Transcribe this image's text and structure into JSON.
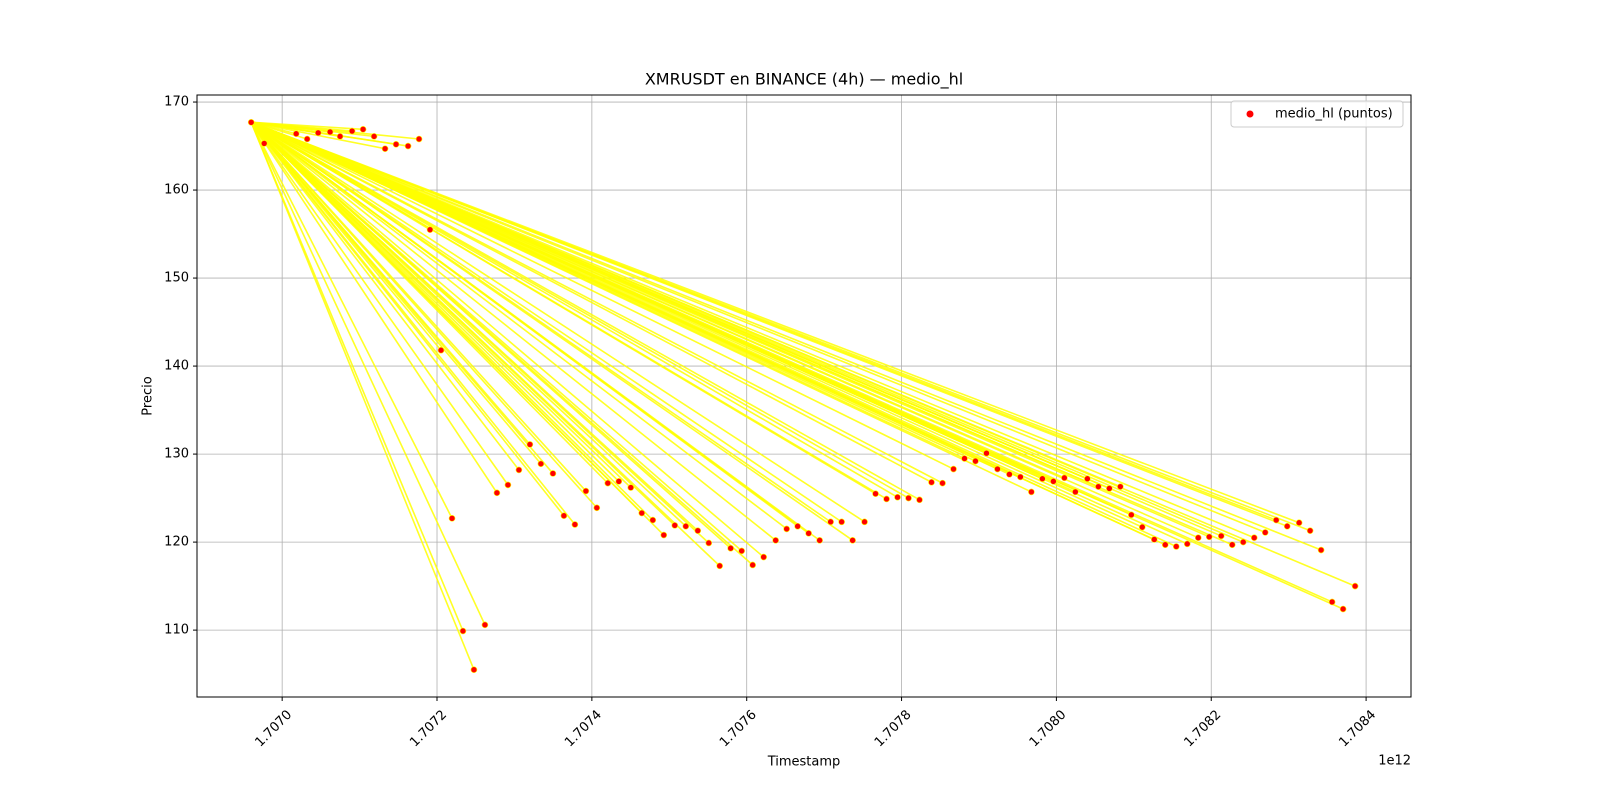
{
  "chart_data": {
    "type": "scatter",
    "title": "XMRUSDT en BINANCE (4h) — medio_hl",
    "x_label": "Timestamp",
    "y_label": "Precio",
    "x_offset_label": "1e12",
    "grid": true,
    "legend": "upper right",
    "line_color": "#ffff00",
    "xlim": [
      1706890000000,
      1708458000000
    ],
    "ylim": [
      102.4,
      170.8
    ],
    "xticks": [
      {
        "value": 1707000000000,
        "label": "1.7070"
      },
      {
        "value": 1707200000000,
        "label": "1.7072"
      },
      {
        "value": 1707400000000,
        "label": "1.7074"
      },
      {
        "value": 1707600000000,
        "label": "1.7076"
      },
      {
        "value": 1707800000000,
        "label": "1.7078"
      },
      {
        "value": 1708000000000,
        "label": "1.7080"
      },
      {
        "value": 1708200000000,
        "label": "1.7082"
      },
      {
        "value": 1708400000000,
        "label": "1.7084"
      }
    ],
    "yticks": [
      110,
      120,
      130,
      140,
      150,
      160,
      170
    ],
    "series": [
      {
        "name": "medio_hl (puntos)",
        "color": "#ff0000",
        "x": [
          1706960000000,
          1706976800000,
          1707018100000,
          1707032300000,
          1707046500000,
          1707061900000,
          1707074800000,
          1707090300000,
          1707104500000,
          1707118700000,
          1707132900000,
          1707147100000,
          1707162600000,
          1707176800000,
          1707191000000,
          1707205200000,
          1707219400000,
          1707233500000,
          1707247700000,
          1707261900000,
          1707277400000,
          1707291600000,
          1707305800000,
          1707320000000,
          1707334200000,
          1707349700000,
          1707363900000,
          1707378100000,
          1707392300000,
          1707406400000,
          1707420600000,
          1707434800000,
          1707450300000,
          1707464500000,
          1707478700000,
          1707492900000,
          1707507100000,
          1707521300000,
          1707536800000,
          1707551000000,
          1707565100000,
          1707579300000,
          1707593500000,
          1707607700000,
          1707621900000,
          1707637400000,
          1707651600000,
          1707665800000,
          1707680000000,
          1707694200000,
          1707708400000,
          1707722600000,
          1707736800000,
          1707752200000,
          1707766400000,
          1707780600000,
          1707794800000,
          1707809000000,
          1707823200000,
          1707838700000,
          1707852900000,
          1707867100000,
          1707881300000,
          1707895500000,
          1707909700000,
          1707923900000,
          1707939300000,
          1707953500000,
          1707967700000,
          1707981900000,
          1707996100000,
          1708010300000,
          1708024500000,
          1708040000000,
          1708054200000,
          1708068400000,
          1708082600000,
          1708096800000,
          1708110900000,
          1708126400000,
          1708140600000,
          1708154800000,
          1708169000000,
          1708183200000,
          1708197400000,
          1708212900000,
          1708227100000,
          1708241300000,
          1708255500000,
          1708269700000,
          1708283900000,
          1708298100000,
          1708313500000,
          1708327700000,
          1708341900000,
          1708356100000,
          1708370300000,
          1708385800000
        ],
        "values": [
          167.7,
          165.3,
          166.4,
          165.8,
          166.5,
          166.6,
          166.1,
          166.7,
          166.9,
          166.1,
          164.7,
          165.2,
          165.0,
          165.8,
          155.5,
          141.8,
          122.7,
          109.9,
          105.5,
          110.6,
          125.6,
          126.5,
          128.2,
          131.1,
          128.9,
          127.8,
          123.0,
          122.0,
          125.8,
          123.9,
          126.7,
          126.9,
          126.2,
          123.3,
          122.5,
          120.8,
          121.9,
          121.8,
          121.3,
          119.9,
          117.3,
          119.3,
          119.0,
          117.4,
          118.3,
          120.2,
          121.5,
          121.8,
          121.0,
          120.2,
          122.3,
          122.3,
          120.2,
          122.3,
          125.5,
          124.9,
          125.1,
          125.0,
          124.8,
          126.8,
          126.7,
          128.3,
          129.5,
          129.2,
          130.1,
          128.3,
          127.7,
          127.4,
          125.7,
          127.2,
          126.9,
          127.3,
          125.7,
          127.2,
          126.3,
          126.1,
          126.3,
          123.1,
          121.7,
          120.3,
          119.7,
          119.5,
          119.8,
          120.5,
          120.6,
          120.7,
          119.7,
          120.0,
          120.5,
          121.1,
          122.5,
          121.8,
          122.2,
          121.3,
          119.1,
          113.2,
          112.4,
          115.0
        ]
      }
    ]
  }
}
